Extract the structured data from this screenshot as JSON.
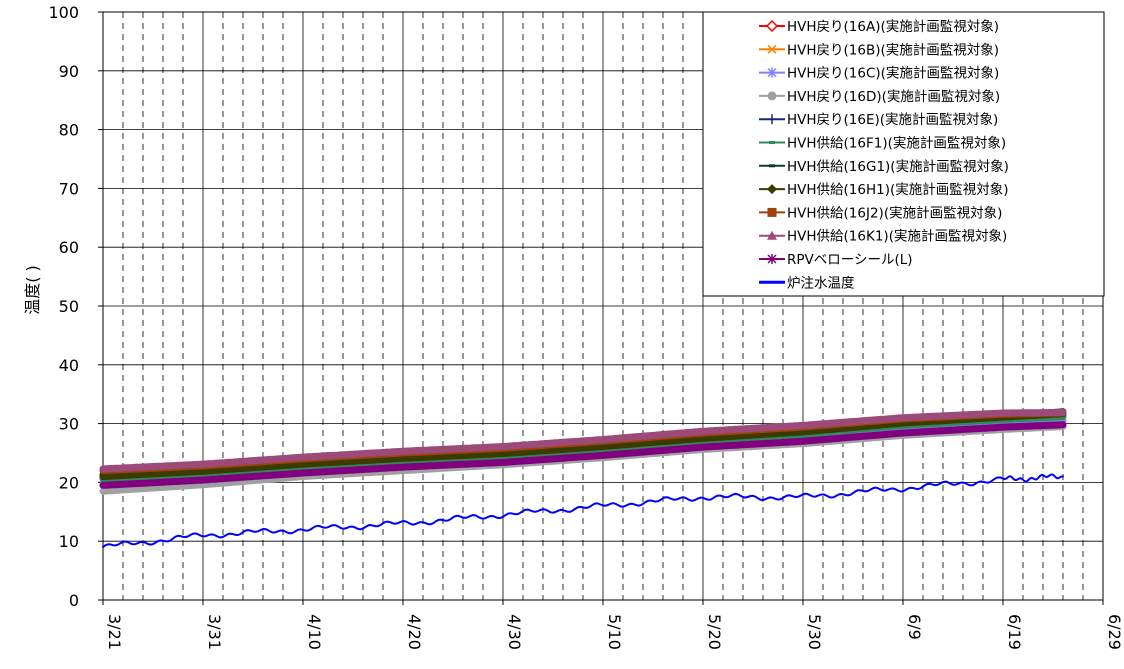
{
  "chart_data": {
    "type": "line",
    "ylabel": "温度(   )",
    "ylim": [
      0,
      100
    ],
    "yticks": [
      "0",
      "10",
      "20",
      "30",
      "40",
      "50",
      "60",
      "70",
      "80",
      "90",
      "100"
    ],
    "xtick_labels": [
      "3/21",
      "3/31",
      "4/10",
      "4/20",
      "4/30",
      "5/10",
      "5/20",
      "5/30",
      "6/9",
      "6/19",
      "6/29"
    ],
    "x": [
      "3/21",
      "3/31",
      "4/10",
      "4/20",
      "4/30",
      "5/10",
      "5/20",
      "5/30",
      "6/9",
      "6/19",
      "6/27"
    ],
    "grid": true,
    "legend_position": "top-right",
    "series": [
      {
        "name": "HVH戻り(16A)(実施計画監視対象)",
        "color": "#ff0000",
        "marker": "diamond-open",
        "values": [
          21.0,
          21.8,
          23.0,
          24.0,
          24.8,
          26.0,
          27.5,
          28.5,
          30.0,
          31.0,
          31.5
        ]
      },
      {
        "name": "HVH戻り(16B)(実施計画監視対象)",
        "color": "#ff8000",
        "marker": "x",
        "values": [
          21.2,
          22.0,
          23.2,
          24.2,
          25.0,
          26.2,
          27.6,
          28.6,
          30.1,
          31.1,
          31.6
        ]
      },
      {
        "name": "HVH戻り(16C)(実施計画監視対象)",
        "color": "#8080ff",
        "marker": "asterisk",
        "values": [
          20.0,
          20.8,
          22.0,
          23.0,
          23.8,
          25.0,
          26.5,
          27.5,
          29.0,
          30.0,
          30.5
        ]
      },
      {
        "name": "HVH戻り(16D)(実施計画監視対象)",
        "color": "#a0a0a0",
        "marker": "circle",
        "values": [
          18.5,
          19.6,
          21.0,
          22.0,
          23.0,
          24.2,
          25.6,
          26.6,
          28.0,
          29.0,
          29.5
        ]
      },
      {
        "name": "HVH戻り(16E)(実施計画監視対象)",
        "color": "#1a237e",
        "marker": "plus",
        "values": [
          21.0,
          21.8,
          23.0,
          24.0,
          24.8,
          26.0,
          27.4,
          28.5,
          30.0,
          31.0,
          31.5
        ]
      },
      {
        "name": "HVH供給(16F1)(実施計画監視対象)",
        "color": "#2e8b57",
        "marker": "dash",
        "values": [
          20.6,
          21.5,
          22.7,
          23.7,
          24.5,
          25.7,
          27.1,
          28.2,
          29.7,
          30.7,
          31.2
        ]
      },
      {
        "name": "HVH供給(16G1)(実施計画監視対象)",
        "color": "#0b3d20",
        "marker": "dash",
        "values": [
          21.3,
          22.1,
          23.3,
          24.3,
          25.1,
          26.3,
          27.7,
          28.8,
          30.3,
          31.3,
          32.0
        ]
      },
      {
        "name": "HVH供給(16H1)(実施計画監視対象)",
        "color": "#3b3b00",
        "marker": "diamond",
        "values": [
          21.0,
          21.9,
          23.1,
          24.1,
          24.9,
          26.1,
          27.5,
          28.6,
          30.1,
          31.1,
          31.7
        ]
      },
      {
        "name": "HVH供給(16J2)(実施計画監視対象)",
        "color": "#a0420a",
        "marker": "square",
        "values": [
          22.0,
          22.8,
          24.0,
          25.0,
          25.8,
          27.0,
          28.4,
          29.4,
          30.8,
          31.6,
          31.8
        ]
      },
      {
        "name": "HVH供給(16K1)(実施計画監視対象)",
        "color": "#9c4a7a",
        "marker": "triangle",
        "values": [
          22.3,
          23.1,
          24.3,
          25.3,
          26.1,
          27.3,
          28.7,
          29.7,
          31.0,
          31.8,
          31.9
        ]
      },
      {
        "name": "RPVベローシール(L)",
        "color": "#800080",
        "marker": "asterisk",
        "values": [
          19.5,
          20.4,
          21.6,
          22.6,
          23.4,
          24.6,
          26.0,
          27.0,
          28.4,
          29.4,
          29.8
        ]
      },
      {
        "name": "炉注水温度",
        "color": "#0000ff",
        "marker": "none",
        "values": [
          9.0,
          11.0,
          12.0,
          13.0,
          14.5,
          16.0,
          17.5,
          17.5,
          19.0,
          20.5,
          21.0
        ]
      }
    ]
  }
}
